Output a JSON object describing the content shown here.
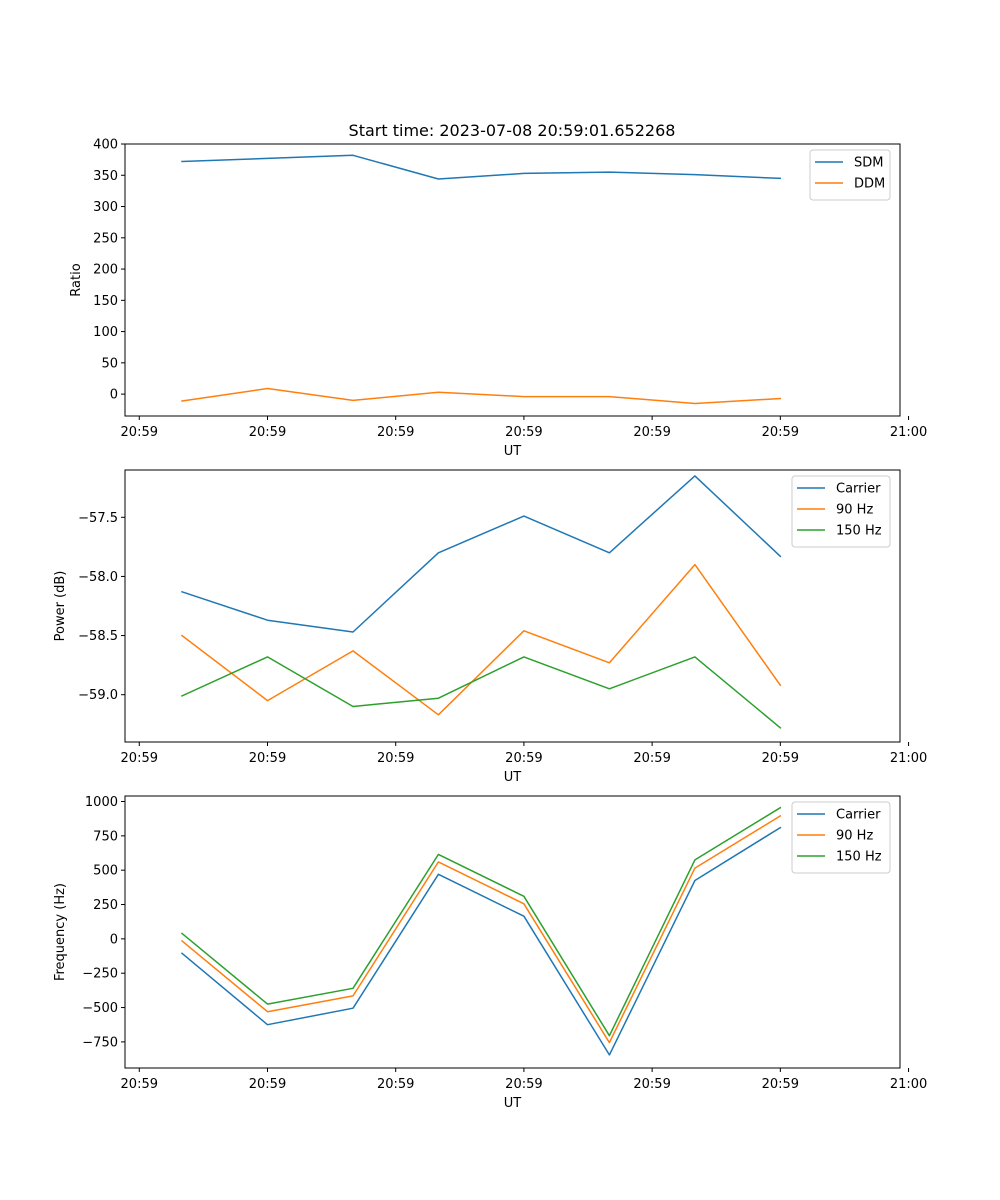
{
  "title": "Start time: 2023-07-08 20:59:01.652268",
  "colors": {
    "blue": "#1f77b4",
    "orange": "#ff7f0e",
    "green": "#2ca02c"
  },
  "chart_data": [
    {
      "type": "line",
      "title": "Start time: 2023-07-08 20:59:01.652268",
      "xlabel": "UT",
      "ylabel": "Ratio",
      "x_tick_labels": [
        "20:59",
        "20:59",
        "20:59",
        "20:59",
        "20:59",
        "20:59",
        "21:00"
      ],
      "x": [
        1,
        2,
        3,
        4,
        5,
        6,
        7,
        8
      ],
      "xlim": [
        0.333,
        9.4
      ],
      "x_ticks": [
        0.5,
        2.0,
        3.5,
        5.0,
        6.5,
        8.0,
        9.5
      ],
      "ylim": [
        -35,
        400
      ],
      "y_ticks": [
        0,
        50,
        100,
        150,
        200,
        250,
        300,
        350,
        400
      ],
      "y_tick_labels": [
        "0",
        "50",
        "100",
        "150",
        "200",
        "250",
        "300",
        "350",
        "400"
      ],
      "legend": "top-right",
      "series": [
        {
          "name": "SDM",
          "color": "#1f77b4",
          "values": [
            372,
            377,
            382,
            344,
            353,
            355,
            351,
            345
          ]
        },
        {
          "name": "DDM",
          "color": "#ff7f0e",
          "values": [
            -11,
            9,
            -10,
            3,
            -4,
            -4,
            -15,
            -7
          ]
        }
      ]
    },
    {
      "type": "line",
      "title": "",
      "xlabel": "UT",
      "ylabel": "Power (dB)",
      "x_tick_labels": [
        "20:59",
        "20:59",
        "20:59",
        "20:59",
        "20:59",
        "20:59",
        "21:00"
      ],
      "x": [
        1,
        2,
        3,
        4,
        5,
        6,
        7,
        8
      ],
      "xlim": [
        0.333,
        9.4
      ],
      "x_ticks": [
        0.5,
        2.0,
        3.5,
        5.0,
        6.5,
        8.0,
        9.5
      ],
      "ylim": [
        -59.4,
        -57.1
      ],
      "y_ticks": [
        -59.0,
        -58.5,
        -58.0,
        -57.5
      ],
      "y_tick_labels": [
        "−59.0",
        "−58.5",
        "−58.0",
        "−57.5"
      ],
      "legend": "top-right",
      "series": [
        {
          "name": "Carrier",
          "color": "#1f77b4",
          "values": [
            -58.13,
            -58.37,
            -58.47,
            -57.8,
            -57.49,
            -57.8,
            -57.15,
            -57.83
          ]
        },
        {
          "name": "90 Hz",
          "color": "#ff7f0e",
          "values": [
            -58.5,
            -59.05,
            -58.63,
            -59.17,
            -58.46,
            -58.73,
            -57.9,
            -58.92
          ]
        },
        {
          "name": "150 Hz",
          "color": "#2ca02c",
          "values": [
            -59.01,
            -58.68,
            -59.1,
            -59.03,
            -58.68,
            -58.95,
            -58.68,
            -59.28
          ]
        }
      ]
    },
    {
      "type": "line",
      "title": "",
      "xlabel": "UT",
      "ylabel": "Frequency (Hz)",
      "x_tick_labels": [
        "20:59",
        "20:59",
        "20:59",
        "20:59",
        "20:59",
        "20:59",
        "21:00"
      ],
      "x": [
        1,
        2,
        3,
        4,
        5,
        6,
        7,
        8
      ],
      "xlim": [
        0.333,
        9.4
      ],
      "x_ticks": [
        0.5,
        2.0,
        3.5,
        5.0,
        6.5,
        8.0,
        9.5
      ],
      "ylim": [
        -940,
        1040
      ],
      "y_ticks": [
        -750,
        -500,
        -250,
        0,
        250,
        500,
        750,
        1000
      ],
      "y_tick_labels": [
        "−750",
        "−500",
        "−250",
        "0",
        "250",
        "500",
        "750",
        "1000"
      ],
      "legend": "top-right",
      "series": [
        {
          "name": "Carrier",
          "color": "#1f77b4",
          "values": [
            -105,
            -625,
            -505,
            470,
            165,
            -845,
            425,
            810
          ]
        },
        {
          "name": "90 Hz",
          "color": "#ff7f0e",
          "values": [
            -15,
            -530,
            -415,
            560,
            255,
            -755,
            515,
            895
          ]
        },
        {
          "name": "150 Hz",
          "color": "#2ca02c",
          "values": [
            40,
            -475,
            -360,
            615,
            310,
            -705,
            575,
            955
          ]
        }
      ]
    }
  ]
}
